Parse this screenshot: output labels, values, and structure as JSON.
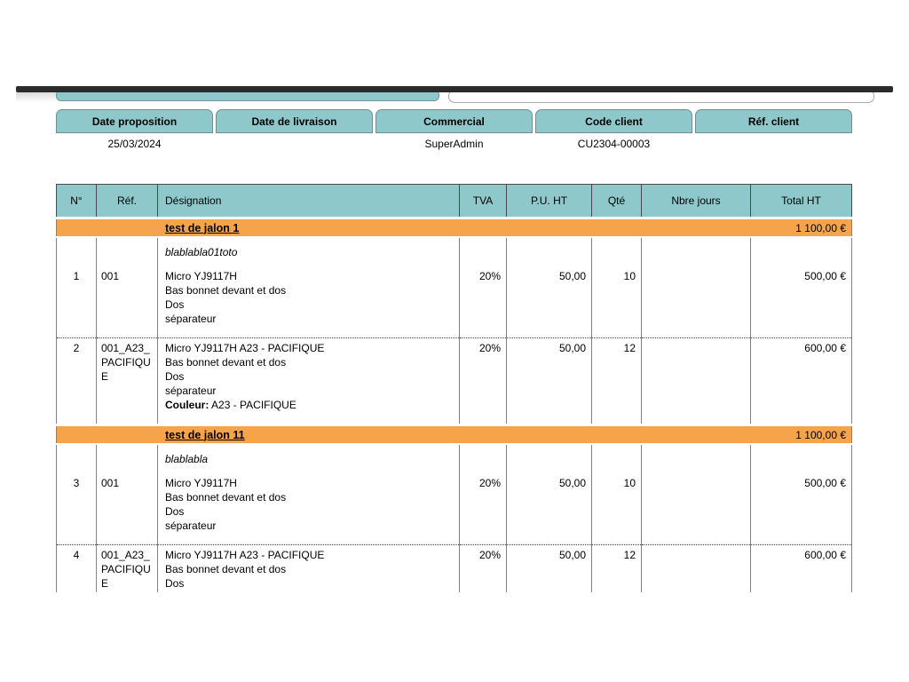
{
  "colors": {
    "teal": "#8ec8cb",
    "orange": "#f6a44c",
    "top_bar": "#2b2b2b"
  },
  "info_header": {
    "columns": [
      "Date proposition",
      "Date de livraison",
      "Commercial",
      "Code client",
      "Réf. client"
    ],
    "values": [
      "25/03/2024",
      "",
      "SuperAdmin",
      "CU2304-00003",
      ""
    ]
  },
  "table": {
    "headers": [
      "N°",
      "Réf.",
      "Désignation",
      "TVA",
      "P.U. HT",
      "Qté",
      "Nbre jours",
      "Total HT"
    ],
    "rows": [
      {
        "type": "group",
        "title": "test de jalon 1",
        "total": "1 100,00 €"
      },
      {
        "type": "note",
        "text": "blablabla01toto"
      },
      {
        "type": "item",
        "num": "1",
        "ref": "001",
        "designation_lines": [
          "Micro YJ9117H",
          "Bas bonnet devant et dos",
          "Dos",
          "séparateur"
        ],
        "tva": "20%",
        "pu_ht": "50,00",
        "qty": "10",
        "nbre_jours": "",
        "total_ht": "500,00 €"
      },
      {
        "type": "item",
        "num": "2",
        "ref": "001_A23_PACIFIQUE",
        "designation_lines": [
          "Micro YJ9117H A23 - PACIFIQUE",
          "Bas bonnet devant et dos",
          "Dos",
          "séparateur"
        ],
        "color_label": "Couleur:",
        "color_value": " A23 - PACIFIQUE",
        "tva": "20%",
        "pu_ht": "50,00",
        "qty": "12",
        "nbre_jours": "",
        "total_ht": "600,00 €"
      },
      {
        "type": "group",
        "title": "test de jalon 11",
        "total": "1 100,00 €"
      },
      {
        "type": "note",
        "text": "blablabla"
      },
      {
        "type": "item",
        "num": "3",
        "ref": "001",
        "designation_lines": [
          "Micro YJ9117H",
          "Bas bonnet devant et dos",
          "Dos",
          "séparateur"
        ],
        "tva": "20%",
        "pu_ht": "50,00",
        "qty": "10",
        "nbre_jours": "",
        "total_ht": "500,00 €"
      },
      {
        "type": "item",
        "num": "4",
        "ref": "001_A23_PACIFIQUE",
        "designation_lines": [
          "Micro YJ9117H A23 - PACIFIQUE",
          "Bas bonnet devant et dos",
          "Dos"
        ],
        "tva": "20%",
        "pu_ht": "50,00",
        "qty": "12",
        "nbre_jours": "",
        "total_ht": "600,00 €"
      }
    ]
  }
}
